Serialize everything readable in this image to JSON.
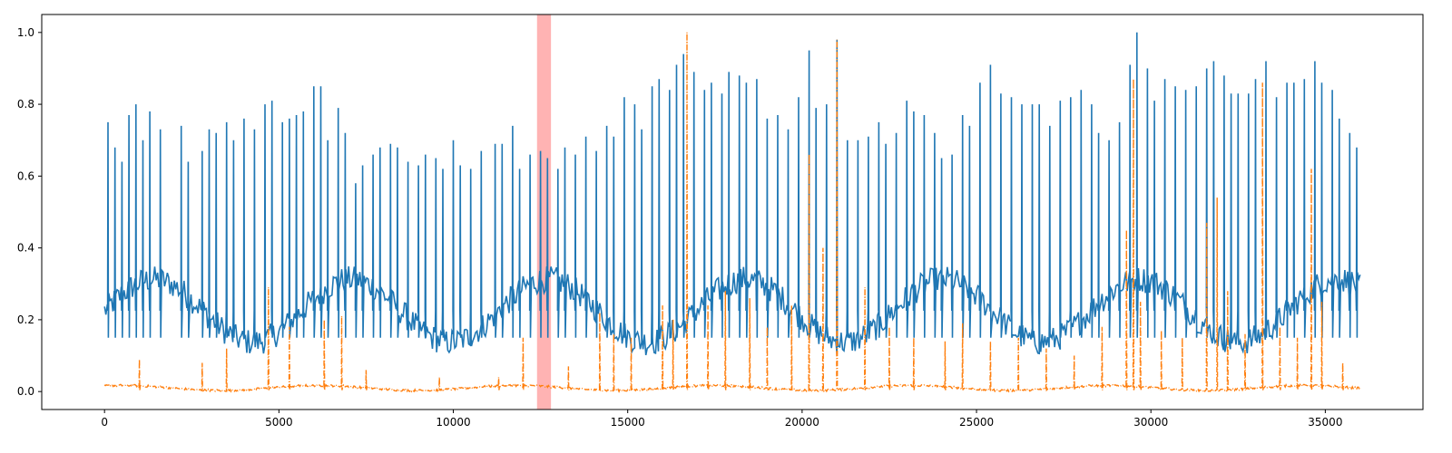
{
  "chart_data": {
    "type": "line",
    "title": "",
    "xlabel": "",
    "ylabel": "",
    "xlim": [
      -1800,
      37800
    ],
    "ylim": [
      -0.05,
      1.05
    ],
    "xticks": [
      0,
      5000,
      10000,
      15000,
      20000,
      25000,
      30000,
      35000
    ],
    "xtick_labels": [
      "0",
      "5000",
      "10000",
      "15000",
      "20000",
      "25000",
      "30000",
      "35000"
    ],
    "yticks": [
      0.0,
      0.2,
      0.4,
      0.6,
      0.8,
      1.0
    ],
    "ytick_labels": [
      "0.0",
      "0.2",
      "0.4",
      "0.6",
      "0.8",
      "1.0"
    ],
    "grid": false,
    "legend": "none",
    "highlight_span": {
      "x_start": 12400,
      "x_end": 12800,
      "color": "#ff9999"
    },
    "series": [
      {
        "color": "#1f77b4",
        "style": "solid",
        "baseline_range": [
          0.1,
          0.35
        ],
        "peaks": [
          [
            100,
            0.75
          ],
          [
            300,
            0.68
          ],
          [
            500,
            0.64
          ],
          [
            700,
            0.77
          ],
          [
            900,
            0.8
          ],
          [
            1100,
            0.7
          ],
          [
            1300,
            0.78
          ],
          [
            1600,
            0.73
          ],
          [
            2200,
            0.74
          ],
          [
            2400,
            0.64
          ],
          [
            2800,
            0.67
          ],
          [
            3000,
            0.73
          ],
          [
            3200,
            0.72
          ],
          [
            3500,
            0.75
          ],
          [
            3700,
            0.7
          ],
          [
            4000,
            0.76
          ],
          [
            4300,
            0.73
          ],
          [
            4600,
            0.8
          ],
          [
            4800,
            0.81
          ],
          [
            5100,
            0.75
          ],
          [
            5300,
            0.76
          ],
          [
            5500,
            0.77
          ],
          [
            5700,
            0.78
          ],
          [
            6000,
            0.85
          ],
          [
            6200,
            0.85
          ],
          [
            6400,
            0.7
          ],
          [
            6700,
            0.79
          ],
          [
            6900,
            0.72
          ],
          [
            7200,
            0.58
          ],
          [
            7400,
            0.63
          ],
          [
            7700,
            0.66
          ],
          [
            7900,
            0.68
          ],
          [
            8200,
            0.69
          ],
          [
            8400,
            0.68
          ],
          [
            8700,
            0.64
          ],
          [
            9000,
            0.63
          ],
          [
            9200,
            0.66
          ],
          [
            9500,
            0.65
          ],
          [
            9700,
            0.62
          ],
          [
            10000,
            0.7
          ],
          [
            10200,
            0.63
          ],
          [
            10500,
            0.62
          ],
          [
            10800,
            0.67
          ],
          [
            11200,
            0.69
          ],
          [
            11400,
            0.69
          ],
          [
            11700,
            0.74
          ],
          [
            11900,
            0.62
          ],
          [
            12200,
            0.66
          ],
          [
            12500,
            0.67
          ],
          [
            12700,
            0.65
          ],
          [
            13000,
            0.62
          ],
          [
            13200,
            0.68
          ],
          [
            13500,
            0.66
          ],
          [
            13800,
            0.71
          ],
          [
            14100,
            0.67
          ],
          [
            14400,
            0.74
          ],
          [
            14600,
            0.71
          ],
          [
            14900,
            0.82
          ],
          [
            15200,
            0.8
          ],
          [
            15400,
            0.73
          ],
          [
            15700,
            0.85
          ],
          [
            15900,
            0.87
          ],
          [
            16200,
            0.84
          ],
          [
            16400,
            0.91
          ],
          [
            16600,
            0.94
          ],
          [
            16900,
            0.89
          ],
          [
            17200,
            0.84
          ],
          [
            17400,
            0.86
          ],
          [
            17700,
            0.83
          ],
          [
            17900,
            0.89
          ],
          [
            18200,
            0.88
          ],
          [
            18400,
            0.86
          ],
          [
            18700,
            0.87
          ],
          [
            19000,
            0.76
          ],
          [
            19300,
            0.77
          ],
          [
            19600,
            0.73
          ],
          [
            19900,
            0.82
          ],
          [
            20200,
            0.95
          ],
          [
            20400,
            0.79
          ],
          [
            20700,
            0.8
          ],
          [
            21000,
            0.98
          ],
          [
            21300,
            0.7
          ],
          [
            21600,
            0.7
          ],
          [
            21900,
            0.71
          ],
          [
            22200,
            0.75
          ],
          [
            22400,
            0.69
          ],
          [
            22700,
            0.72
          ],
          [
            23000,
            0.81
          ],
          [
            23200,
            0.78
          ],
          [
            23500,
            0.77
          ],
          [
            23800,
            0.72
          ],
          [
            24000,
            0.65
          ],
          [
            24300,
            0.66
          ],
          [
            24600,
            0.77
          ],
          [
            24800,
            0.74
          ],
          [
            25100,
            0.86
          ],
          [
            25400,
            0.91
          ],
          [
            25700,
            0.83
          ],
          [
            26000,
            0.82
          ],
          [
            26300,
            0.8
          ],
          [
            26600,
            0.8
          ],
          [
            26800,
            0.8
          ],
          [
            27100,
            0.74
          ],
          [
            27400,
            0.81
          ],
          [
            27700,
            0.82
          ],
          [
            28000,
            0.84
          ],
          [
            28300,
            0.8
          ],
          [
            28500,
            0.72
          ],
          [
            28800,
            0.7
          ],
          [
            29100,
            0.75
          ],
          [
            29400,
            0.91
          ],
          [
            29600,
            1.0
          ],
          [
            29900,
            0.9
          ],
          [
            30100,
            0.81
          ],
          [
            30400,
            0.87
          ],
          [
            30700,
            0.85
          ],
          [
            31000,
            0.84
          ],
          [
            31300,
            0.85
          ],
          [
            31600,
            0.9
          ],
          [
            31800,
            0.92
          ],
          [
            32100,
            0.88
          ],
          [
            32300,
            0.83
          ],
          [
            32500,
            0.83
          ],
          [
            32800,
            0.83
          ],
          [
            33000,
            0.87
          ],
          [
            33300,
            0.92
          ],
          [
            33600,
            0.82
          ],
          [
            33900,
            0.86
          ],
          [
            34100,
            0.86
          ],
          [
            34400,
            0.87
          ],
          [
            34700,
            0.92
          ],
          [
            34900,
            0.86
          ],
          [
            35200,
            0.84
          ],
          [
            35400,
            0.76
          ],
          [
            35700,
            0.72
          ],
          [
            35900,
            0.68
          ]
        ]
      },
      {
        "color": "#ff7f0e",
        "style": "dash-dot",
        "baseline_range": [
          0.0,
          0.02
        ],
        "peaks": [
          [
            1000,
            0.09
          ],
          [
            2800,
            0.08
          ],
          [
            3500,
            0.12
          ],
          [
            4700,
            0.29
          ],
          [
            5300,
            0.18
          ],
          [
            6300,
            0.2
          ],
          [
            6800,
            0.21
          ],
          [
            7500,
            0.06
          ],
          [
            9600,
            0.04
          ],
          [
            11300,
            0.04
          ],
          [
            12000,
            0.15
          ],
          [
            13300,
            0.07
          ],
          [
            14200,
            0.22
          ],
          [
            14600,
            0.16
          ],
          [
            15100,
            0.15
          ],
          [
            16000,
            0.24
          ],
          [
            16300,
            0.2
          ],
          [
            16700,
            1.0
          ],
          [
            17300,
            0.24
          ],
          [
            17800,
            0.28
          ],
          [
            18500,
            0.26
          ],
          [
            19000,
            0.18
          ],
          [
            19700,
            0.24
          ],
          [
            20200,
            0.66
          ],
          [
            20600,
            0.4
          ],
          [
            21000,
            0.98
          ],
          [
            21800,
            0.29
          ],
          [
            22500,
            0.18
          ],
          [
            23200,
            0.15
          ],
          [
            24100,
            0.14
          ],
          [
            24600,
            0.19
          ],
          [
            25400,
            0.14
          ],
          [
            26200,
            0.15
          ],
          [
            27000,
            0.12
          ],
          [
            27800,
            0.1
          ],
          [
            28600,
            0.18
          ],
          [
            29300,
            0.45
          ],
          [
            29500,
            0.87
          ],
          [
            29700,
            0.25
          ],
          [
            30300,
            0.17
          ],
          [
            30900,
            0.15
          ],
          [
            31600,
            0.47
          ],
          [
            31900,
            0.54
          ],
          [
            32200,
            0.28
          ],
          [
            32700,
            0.16
          ],
          [
            33200,
            0.86
          ],
          [
            33700,
            0.18
          ],
          [
            34200,
            0.15
          ],
          [
            34600,
            0.62
          ],
          [
            34900,
            0.25
          ],
          [
            35500,
            0.08
          ]
        ]
      }
    ]
  }
}
